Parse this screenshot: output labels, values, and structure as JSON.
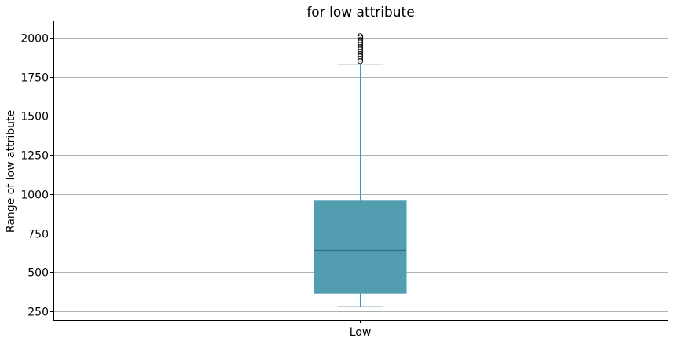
{
  "chart_data": {
    "type": "box",
    "title": "for low attribute",
    "xlabel": "",
    "ylabel": "Range of low attribute",
    "categories": [
      "Low"
    ],
    "ylim": [
      195,
      2105
    ],
    "yticks": [
      250,
      500,
      750,
      1000,
      1250,
      1500,
      1750,
      2000
    ],
    "grid": "horizontal",
    "box": {
      "whisker_low": 280,
      "q1": 365,
      "median": 640,
      "q3": 955,
      "whisker_high": 1830,
      "outliers": [
        1850,
        1865,
        1880,
        1895,
        1910,
        1925,
        1940,
        1955,
        1970,
        1985,
        2000,
        2010
      ]
    },
    "colors": {
      "box_fill": "#539db1",
      "box_line": "#2f7185",
      "whisker": "#5b8ea0",
      "grid": "#b0b0b0"
    }
  }
}
